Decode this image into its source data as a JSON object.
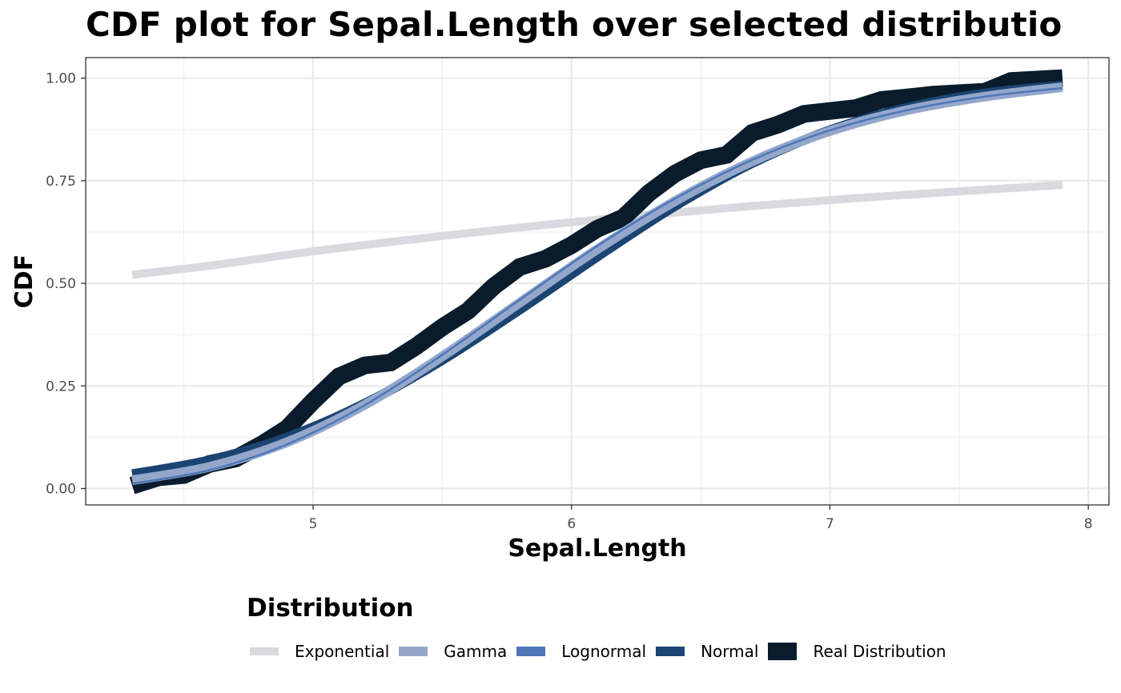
{
  "chart_data": {
    "type": "line",
    "title": "CDF plot for Sepal.Length over selected distributio",
    "xlabel": "Sepal.Length",
    "ylabel": "CDF",
    "xlim": [
      4.12,
      8.08
    ],
    "ylim": [
      -0.04,
      1.05
    ],
    "x_ticks": [
      5,
      6,
      7,
      8
    ],
    "x_tick_labels": [
      "5",
      "6",
      "7",
      "8"
    ],
    "y_ticks": [
      0,
      0.25,
      0.5,
      0.75,
      1
    ],
    "y_tick_labels": [
      "0.00",
      "0.25",
      "0.50",
      "0.75",
      "1.00"
    ],
    "grid": true,
    "legend": {
      "title": "Distribution",
      "position": "bottom"
    },
    "series": [
      {
        "name": "Exponential",
        "color": "#d9d9de",
        "x": [
          4.3,
          4.6,
          5.0,
          5.4,
          5.8,
          6.2,
          6.6,
          7.0,
          7.4,
          7.9
        ],
        "values": [
          0.521,
          0.543,
          0.578,
          0.608,
          0.636,
          0.661,
          0.683,
          0.703,
          0.72,
          0.74
        ]
      },
      {
        "name": "Real Distribution",
        "color": "#0a1c2b",
        "x": [
          4.3,
          4.4,
          4.5,
          4.6,
          4.7,
          4.8,
          4.9,
          5.0,
          5.1,
          5.2,
          5.3,
          5.4,
          5.5,
          5.6,
          5.7,
          5.8,
          5.9,
          6.0,
          6.1,
          6.2,
          6.3,
          6.4,
          6.5,
          6.6,
          6.7,
          6.8,
          6.9,
          7.0,
          7.1,
          7.2,
          7.3,
          7.4,
          7.6,
          7.7,
          7.9
        ],
        "values": [
          0.007,
          0.027,
          0.033,
          0.06,
          0.073,
          0.107,
          0.147,
          0.213,
          0.273,
          0.3,
          0.307,
          0.347,
          0.393,
          0.433,
          0.493,
          0.54,
          0.56,
          0.593,
          0.633,
          0.66,
          0.72,
          0.767,
          0.8,
          0.813,
          0.867,
          0.887,
          0.913,
          0.92,
          0.927,
          0.947,
          0.953,
          0.96,
          0.967,
          0.993,
          1.0
        ]
      },
      {
        "name": "Normal",
        "color": "#1b4472",
        "x": [
          4.3,
          4.6,
          4.9,
          5.2,
          5.5,
          5.8,
          6.1,
          6.4,
          6.7,
          7.0,
          7.3,
          7.6,
          7.9
        ],
        "values": [
          0.035,
          0.069,
          0.125,
          0.207,
          0.313,
          0.436,
          0.565,
          0.688,
          0.793,
          0.873,
          0.928,
          0.963,
          0.982
        ]
      },
      {
        "name": "Gamma",
        "color": "#94a7cb",
        "x": [
          4.3,
          4.6,
          4.9,
          5.2,
          5.5,
          5.8,
          6.1,
          6.4,
          6.7,
          7.0,
          7.3,
          7.6,
          7.9
        ],
        "values": [
          0.02,
          0.053,
          0.113,
          0.204,
          0.322,
          0.453,
          0.583,
          0.7,
          0.797,
          0.871,
          0.922,
          0.955,
          0.978
        ]
      },
      {
        "name": "Lognormal",
        "color": "#4f77b8",
        "x": [
          4.3,
          4.6,
          4.9,
          5.2,
          5.5,
          5.8,
          6.1,
          6.4,
          6.7,
          7.0,
          7.3,
          7.6,
          7.9
        ],
        "values": [
          0.012,
          0.045,
          0.108,
          0.203,
          0.326,
          0.46,
          0.591,
          0.706,
          0.801,
          0.873,
          0.922,
          0.955,
          0.976
        ]
      }
    ]
  },
  "legend_items": [
    {
      "label": "Exponential",
      "color": "#d9d9de",
      "thickness": 10
    },
    {
      "label": "Gamma",
      "color": "#94a7cb",
      "thickness": 12
    },
    {
      "label": "Lognormal",
      "color": "#4f77b8",
      "thickness": 12
    },
    {
      "label": "Normal",
      "color": "#1b4472",
      "thickness": 12
    },
    {
      "label": "Real Distribution",
      "color": "#0a1c2b",
      "thickness": 22
    }
  ]
}
